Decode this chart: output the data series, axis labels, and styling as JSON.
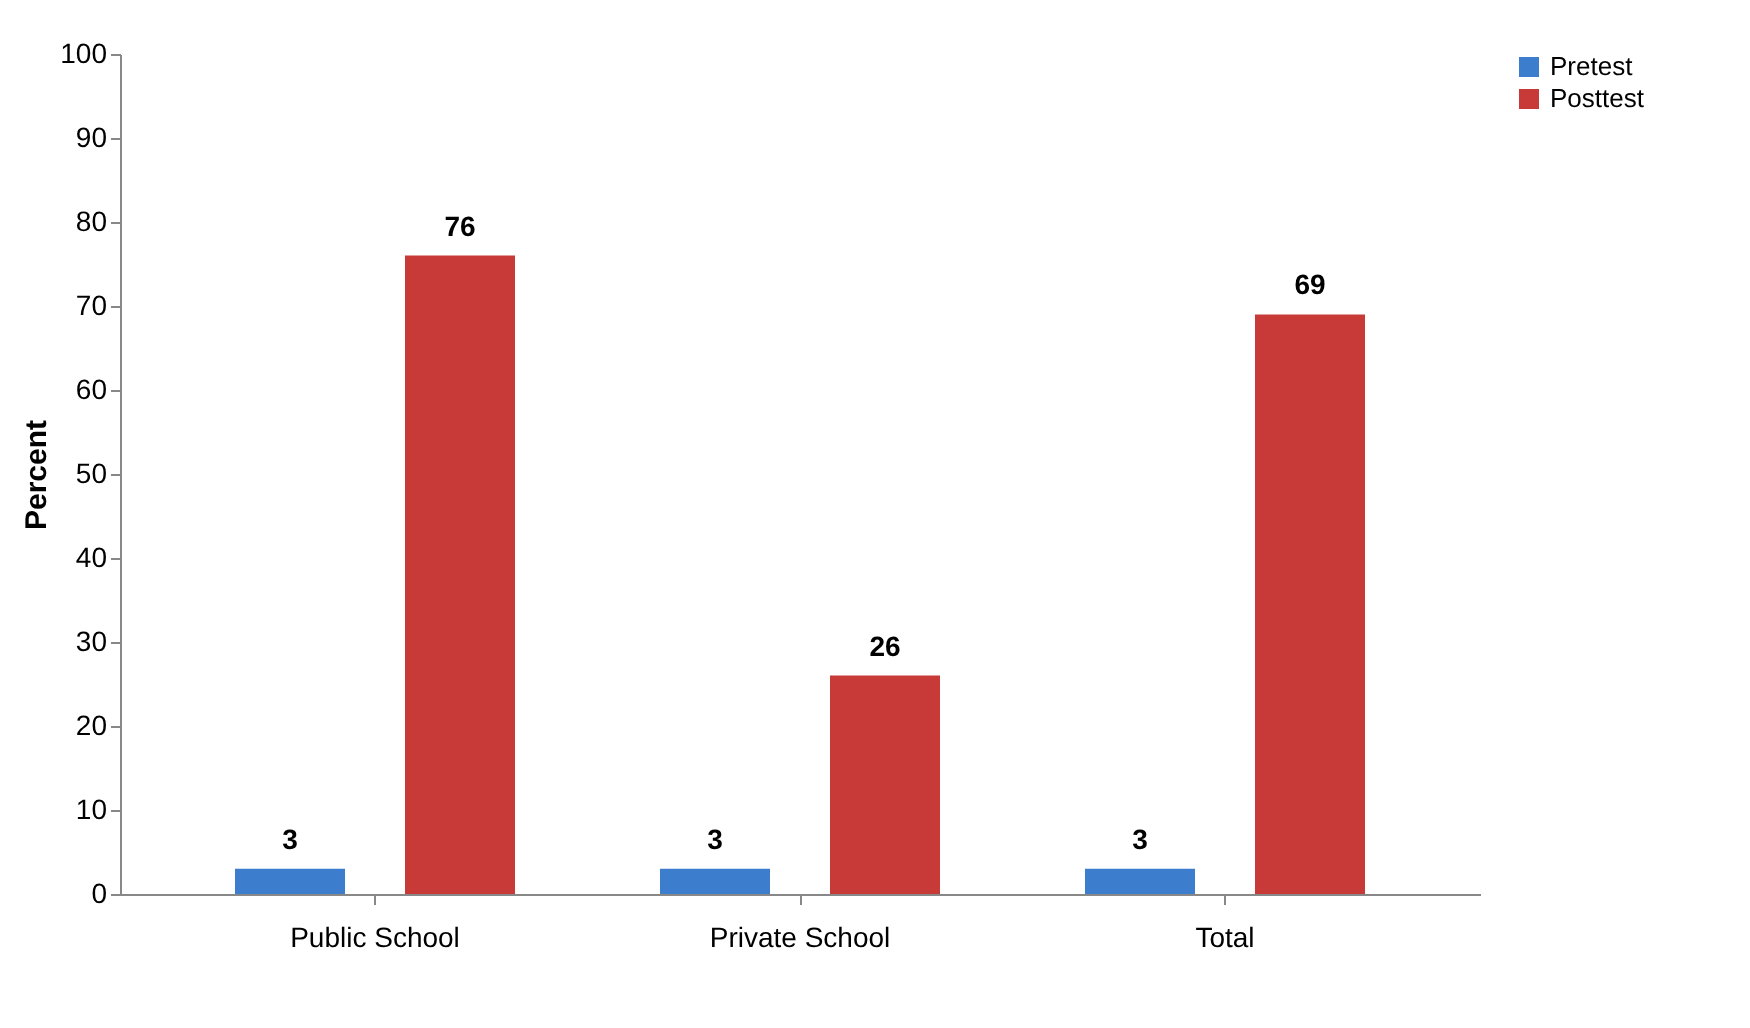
{
  "chart_data": {
    "type": "bar",
    "ylabel": "Percent",
    "categories": [
      "Public School",
      "Private School",
      "Total"
    ],
    "series": [
      {
        "name": "Pretest",
        "color": "#3c7dce",
        "values": [
          3,
          3,
          3
        ]
      },
      {
        "name": "Posttest",
        "color": "#c83a37",
        "values": [
          76,
          26,
          69
        ]
      }
    ],
    "ylim": [
      0,
      100
    ],
    "yticks": [
      0,
      10,
      20,
      30,
      40,
      50,
      60,
      70,
      80,
      90,
      100
    ],
    "grid": false,
    "legend": "right",
    "data_labels": true
  }
}
